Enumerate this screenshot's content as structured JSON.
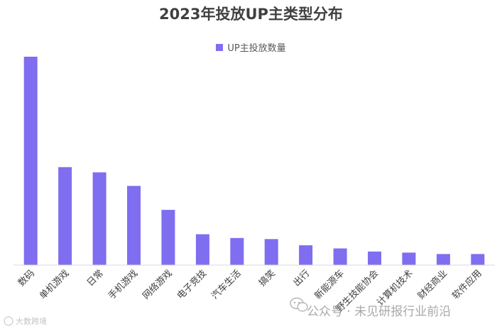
{
  "chart_data": {
    "type": "bar",
    "title": "2023年投放UP主类型分布",
    "legend": {
      "placement": "top",
      "label": "UP主投放数量"
    },
    "series": [
      {
        "name": "UP主投放数量",
        "color": "#7F6EF0"
      }
    ],
    "categories": [
      "数码",
      "单机游戏",
      "日常",
      "手机游戏",
      "网络游戏",
      "电子竞技",
      "汽车生活",
      "搞笑",
      "出行",
      "新能源车",
      "野生技能协会",
      "计算机技术",
      "财经商业",
      "软件应用"
    ],
    "values": [
      100,
      47,
      44.5,
      38,
      26.5,
      14.8,
      13,
      12.5,
      9.5,
      8,
      6.5,
      6,
      5.3,
      5.3
    ],
    "ylim": [
      0,
      100
    ],
    "grid": false,
    "y_axis_visible": false
  },
  "watermark": {
    "text": "公众号 · 未见研报行业前沿",
    "corner": "大数跨境"
  }
}
